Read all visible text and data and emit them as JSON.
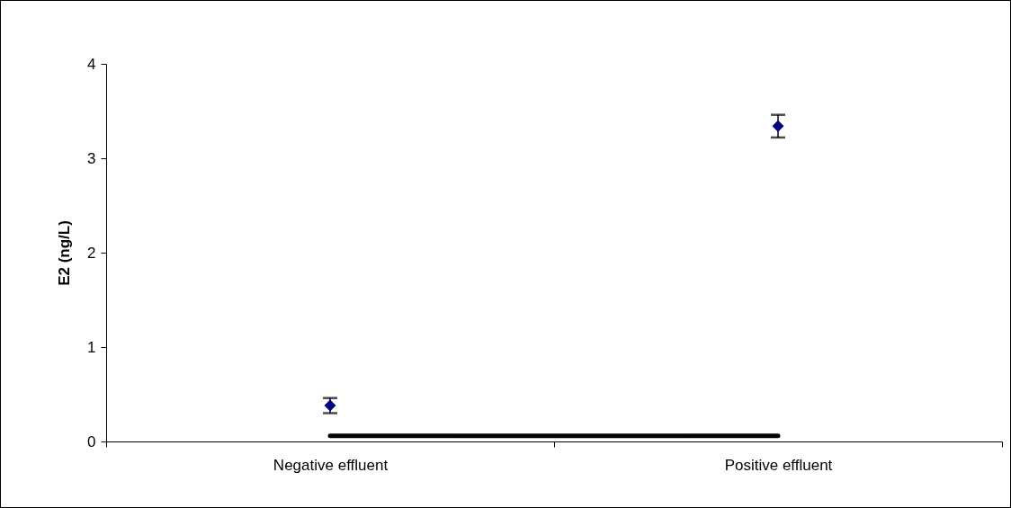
{
  "chart_data": {
    "type": "scatter",
    "ylabel": "E2 (ng/L)",
    "categories": [
      "Negative effluent",
      "Positive effluent"
    ],
    "ylim": [
      0,
      4
    ],
    "yticks": [
      0,
      1,
      2,
      3,
      4
    ],
    "grid": false,
    "series": [
      {
        "type": "line",
        "color": "#000000",
        "values": [
          0.06,
          0.06
        ]
      },
      {
        "color": "#000080",
        "values": [
          0.38,
          3.34
        ],
        "errors": [
          0.08,
          0.12
        ],
        "marker": "diamond"
      }
    ]
  }
}
